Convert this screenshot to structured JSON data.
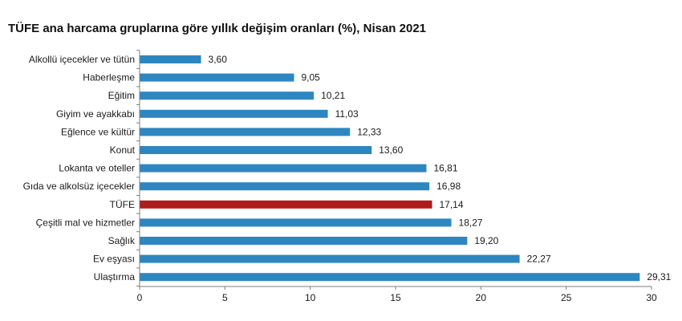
{
  "chart_data": {
    "type": "bar",
    "orientation": "horizontal",
    "title": "TÜFE ana harcama gruplarına göre yıllık değişim oranları (%), Nisan 2021",
    "categories": [
      "Alkollü içecekler ve tütün",
      "Haberleşme",
      "Eğitim",
      "Giyim ve ayakkabı",
      "Eğlence ve kültür",
      "Konut",
      "Lokanta ve oteller",
      "Gıda ve alkolsüz içecekler",
      "TÜFE",
      "Çeşitli mal ve hizmetler",
      "Sağlık",
      "Ev eşyası",
      "Ulaştırma"
    ],
    "values": [
      3.6,
      9.05,
      10.21,
      11.03,
      12.33,
      13.6,
      16.81,
      16.98,
      17.14,
      18.27,
      19.2,
      22.27,
      29.31
    ],
    "value_labels": [
      "3,60",
      "9,05",
      "10,21",
      "11,03",
      "12,33",
      "13,60",
      "16,81",
      "16,98",
      "17,14",
      "18,27",
      "19,20",
      "22,27",
      "29,31"
    ],
    "highlight_index": 8,
    "xlim": [
      0,
      30
    ],
    "xticks": [
      0,
      5,
      10,
      15,
      20,
      25,
      30
    ],
    "xlabel": "",
    "ylabel": "",
    "grid": false,
    "colors": {
      "bar": "#2e86c1",
      "highlight": "#b01c1c",
      "axis": "#7f7f7f"
    }
  }
}
